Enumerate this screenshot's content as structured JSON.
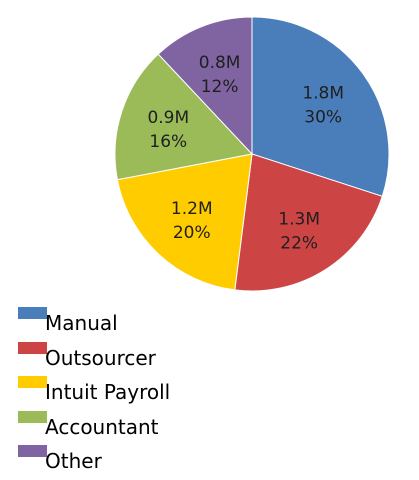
{
  "chart_data": {
    "type": "pie",
    "title": "",
    "start_angle_deg": 0,
    "direction": "clockwise",
    "slices": [
      {
        "name": "Manual",
        "value_label": "1.8M",
        "percent_label": "30%",
        "percent": 30,
        "color": "#4a7ebb"
      },
      {
        "name": "Outsourcer",
        "value_label": "1.3M",
        "percent_label": "22%",
        "percent": 22,
        "color": "#cd4444"
      },
      {
        "name": "Intuit Payroll",
        "value_label": "1.2M",
        "percent_label": "20%",
        "percent": 20,
        "color": "#ffcc00"
      },
      {
        "name": "Accountant",
        "value_label": "0.9M",
        "percent_label": "16%",
        "percent": 16,
        "color": "#9bbb59"
      },
      {
        "name": "Other",
        "value_label": "0.8M",
        "percent_label": "12%",
        "percent": 12,
        "color": "#8064a2"
      }
    ],
    "legend_position": "bottom-left"
  }
}
